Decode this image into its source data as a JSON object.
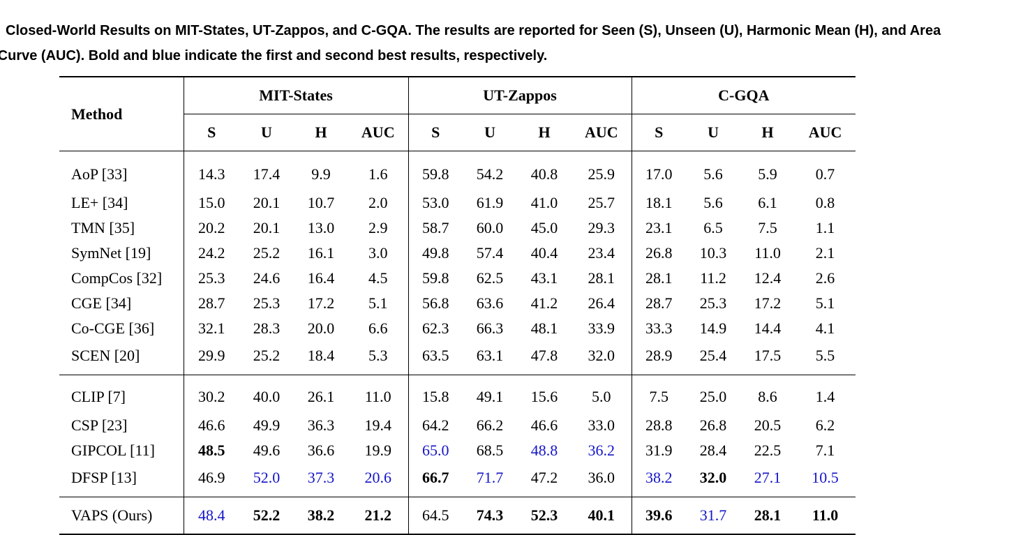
{
  "caption": {
    "line1": "Closed-World Results on MIT-States, UT-Zappos, and C-GQA. The results are reported for Seen (S), Unseen (U), Harmonic Mean (H), and Area",
    "line2": "e Curve (AUC). Bold and blue indicate the first and second best results, respectively."
  },
  "table": {
    "method_header": "Method",
    "datasets": [
      "MIT-States",
      "UT-Zappos",
      "C-GQA"
    ],
    "metrics": [
      "S",
      "U",
      "H",
      "AUC"
    ],
    "colors": {
      "second_best": "#1414c8"
    },
    "rows": [
      {
        "method": "AoP [33]",
        "values": [
          "14.3",
          "17.4",
          "9.9",
          "1.6",
          "59.8",
          "54.2",
          "40.8",
          "25.9",
          "17.0",
          "5.6",
          "5.9",
          "0.7"
        ]
      },
      {
        "method": "LE+ [34]",
        "values": [
          "15.0",
          "20.1",
          "10.7",
          "2.0",
          "53.0",
          "61.9",
          "41.0",
          "25.7",
          "18.1",
          "5.6",
          "6.1",
          "0.8"
        ]
      },
      {
        "method": "TMN [35]",
        "values": [
          "20.2",
          "20.1",
          "13.0",
          "2.9",
          "58.7",
          "60.0",
          "45.0",
          "29.3",
          "23.1",
          "6.5",
          "7.5",
          "1.1"
        ]
      },
      {
        "method": "SymNet [19]",
        "values": [
          "24.2",
          "25.2",
          "16.1",
          "3.0",
          "49.8",
          "57.4",
          "40.4",
          "23.4",
          "26.8",
          "10.3",
          "11.0",
          "2.1"
        ]
      },
      {
        "method": "CompCos [32]",
        "values": [
          "25.3",
          "24.6",
          "16.4",
          "4.5",
          "59.8",
          "62.5",
          "43.1",
          "28.1",
          "28.1",
          "11.2",
          "12.4",
          "2.6"
        ]
      },
      {
        "method": "CGE [34]",
        "values": [
          "28.7",
          "25.3",
          "17.2",
          "5.1",
          "56.8",
          "63.6",
          "41.2",
          "26.4",
          "28.7",
          "25.3",
          "17.2",
          "5.1"
        ]
      },
      {
        "method": "Co-CGE [36]",
        "values": [
          "32.1",
          "28.3",
          "20.0",
          "6.6",
          "62.3",
          "66.3",
          "48.1",
          "33.9",
          "33.3",
          "14.9",
          "14.4",
          "4.1"
        ]
      },
      {
        "method": "SCEN [20]",
        "values": [
          "29.9",
          "25.2",
          "18.4",
          "5.3",
          "63.5",
          "63.1",
          "47.8",
          "32.0",
          "28.9",
          "25.4",
          "17.5",
          "5.5"
        ]
      },
      {
        "method": "CLIP [7]",
        "values": [
          "30.2",
          "40.0",
          "26.1",
          "11.0",
          "15.8",
          "49.1",
          "15.6",
          "5.0",
          "7.5",
          "25.0",
          "8.6",
          "1.4"
        ]
      },
      {
        "method": "CSP [23]",
        "values": [
          "46.6",
          "49.9",
          "36.3",
          "19.4",
          "64.2",
          "66.2",
          "46.6",
          "33.0",
          "28.8",
          "26.8",
          "20.5",
          "6.2"
        ]
      },
      {
        "method": "GIPCOL [11]",
        "values": [
          "48.5",
          "49.6",
          "36.6",
          "19.9",
          "65.0",
          "68.5",
          "48.8",
          "36.2",
          "31.9",
          "28.4",
          "22.5",
          "7.1"
        ],
        "styles": [
          "b",
          "",
          "",
          "",
          "blue",
          "",
          "blue",
          "blue",
          "",
          "",
          "",
          ""
        ]
      },
      {
        "method": "DFSP [13]",
        "values": [
          "46.9",
          "52.0",
          "37.3",
          "20.6",
          "66.7",
          "71.7",
          "47.2",
          "36.0",
          "38.2",
          "32.0",
          "27.1",
          "10.5"
        ],
        "styles": [
          "",
          "blue",
          "blue",
          "blue",
          "b",
          "blue",
          "",
          "",
          "blue",
          "b",
          "blue",
          "blue"
        ]
      },
      {
        "method": "VAPS (Ours)",
        "values": [
          "48.4",
          "52.2",
          "38.2",
          "21.2",
          "64.5",
          "74.3",
          "52.3",
          "40.1",
          "39.6",
          "31.7",
          "28.1",
          "11.0"
        ],
        "styles": [
          "blue",
          "b",
          "b",
          "b",
          "",
          "b",
          "b",
          "b",
          "b",
          "blue",
          "b",
          "b"
        ]
      }
    ]
  }
}
